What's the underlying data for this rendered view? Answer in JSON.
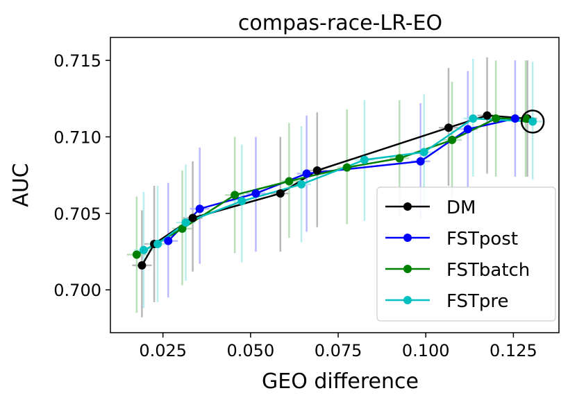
{
  "chart_data": {
    "type": "line",
    "title": "compas-race-LR-EO",
    "xlabel": "GEO difference",
    "ylabel": "AUC",
    "xlim": [
      0.01,
      0.138
    ],
    "ylim": [
      0.6972,
      0.7165
    ],
    "xticks": [
      {
        "value": 0.025,
        "label": "0.025"
      },
      {
        "value": 0.05,
        "label": "0.050"
      },
      {
        "value": 0.075,
        "label": "0.075"
      },
      {
        "value": 0.1,
        "label": "0.100"
      },
      {
        "value": 0.125,
        "label": "0.125"
      }
    ],
    "yticks": [
      {
        "value": 0.7,
        "label": "0.700"
      },
      {
        "value": 0.705,
        "label": "0.705"
      },
      {
        "value": 0.71,
        "label": "0.710"
      },
      {
        "value": 0.715,
        "label": "0.715"
      }
    ],
    "legend_position": "lower-right",
    "highlight": {
      "x": 0.1305,
      "y": 0.711,
      "shape": "circle"
    },
    "series": [
      {
        "name": "DM",
        "color": "#000000",
        "error_color": "#b0b0b0",
        "points": [
          {
            "x": 0.019,
            "y": 0.7016,
            "yerr": [
              0.6982,
              0.7052
            ]
          },
          {
            "x": 0.0225,
            "y": 0.703,
            "yerr": [
              0.6992,
              0.7068
            ]
          },
          {
            "x": 0.0335,
            "y": 0.7047,
            "yerr": [
              0.7012,
              0.7084
            ]
          },
          {
            "x": 0.0585,
            "y": 0.7063,
            "yerr": [
              0.7025,
              0.71
            ]
          },
          {
            "x": 0.069,
            "y": 0.7078,
            "yerr": [
              0.7041,
              0.7116
            ]
          },
          {
            "x": 0.1065,
            "y": 0.7106,
            "yerr": [
              0.7068,
              0.7145
            ]
          },
          {
            "x": 0.1175,
            "y": 0.7114,
            "yerr": [
              0.7076,
              0.7152
            ]
          },
          {
            "x": 0.129,
            "y": 0.7112,
            "yerr": [
              0.7074,
              0.715
            ]
          }
        ]
      },
      {
        "name": "FSTpost",
        "color": "#0000ff",
        "error_color": "#b3b3ff",
        "points": [
          {
            "x": 0.0265,
            "y": 0.7032,
            "yerr": [
              0.6995,
              0.707
            ]
          },
          {
            "x": 0.0355,
            "y": 0.7053,
            "yerr": [
              0.7017,
              0.7093
            ]
          },
          {
            "x": 0.0515,
            "y": 0.7063,
            "yerr": [
              0.7025,
              0.71
            ]
          },
          {
            "x": 0.066,
            "y": 0.7076,
            "yerr": [
              0.7038,
              0.7114
            ]
          },
          {
            "x": 0.0985,
            "y": 0.7084,
            "yerr": [
              0.7046,
              0.7122
            ]
          },
          {
            "x": 0.112,
            "y": 0.7105,
            "yerr": [
              0.7067,
              0.7143
            ]
          },
          {
            "x": 0.1255,
            "y": 0.7112,
            "yerr": [
              0.7074,
              0.715
            ]
          }
        ]
      },
      {
        "name": "FSTbatch",
        "color": "#008000",
        "error_color": "#b3d9b3",
        "points": [
          {
            "x": 0.0175,
            "y": 0.7023,
            "yerr": [
              0.6985,
              0.7061
            ]
          },
          {
            "x": 0.0305,
            "y": 0.704,
            "yerr": [
              0.7003,
              0.7078
            ]
          },
          {
            "x": 0.0455,
            "y": 0.7062,
            "yerr": [
              0.7024,
              0.71
            ]
          },
          {
            "x": 0.061,
            "y": 0.7071,
            "yerr": [
              0.7034,
              0.7109
            ]
          },
          {
            "x": 0.0775,
            "y": 0.708,
            "yerr": [
              0.7043,
              0.7118
            ]
          },
          {
            "x": 0.0925,
            "y": 0.7086,
            "yerr": [
              0.7048,
              0.7124
            ]
          },
          {
            "x": 0.1075,
            "y": 0.7098,
            "yerr": [
              0.706,
              0.7136
            ]
          },
          {
            "x": 0.12,
            "y": 0.7112,
            "yerr": [
              0.7074,
              0.715
            ]
          },
          {
            "x": 0.1285,
            "y": 0.7112,
            "yerr": [
              0.7074,
              0.715
            ]
          }
        ]
      },
      {
        "name": "FSTpre",
        "color": "#00bfbf",
        "error_color": "#b3ecec",
        "points": [
          {
            "x": 0.0195,
            "y": 0.7026,
            "yerr": [
              0.6988,
              0.7064
            ]
          },
          {
            "x": 0.0235,
            "y": 0.703,
            "yerr": [
              0.6992,
              0.7068
            ]
          },
          {
            "x": 0.0315,
            "y": 0.7044,
            "yerr": [
              0.7006,
              0.7082
            ]
          },
          {
            "x": 0.0475,
            "y": 0.7058,
            "yerr": [
              0.7018,
              0.7095
            ]
          },
          {
            "x": 0.0645,
            "y": 0.7069,
            "yerr": [
              0.7031,
              0.7107
            ]
          },
          {
            "x": 0.0825,
            "y": 0.7085,
            "yerr": [
              0.7045,
              0.7124
            ]
          },
          {
            "x": 0.0995,
            "y": 0.709,
            "yerr": [
              0.7052,
              0.7128
            ]
          },
          {
            "x": 0.1135,
            "y": 0.7112,
            "yerr": [
              0.7074,
              0.7151
            ]
          },
          {
            "x": 0.1305,
            "y": 0.711,
            "yerr": [
              0.7072,
              0.7149
            ]
          }
        ]
      }
    ]
  }
}
